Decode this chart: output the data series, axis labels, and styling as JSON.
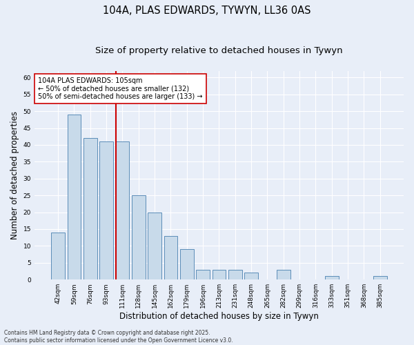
{
  "title1": "104A, PLAS EDWARDS, TYWYN, LL36 0AS",
  "title2": "Size of property relative to detached houses in Tywyn",
  "xlabel": "Distribution of detached houses by size in Tywyn",
  "ylabel": "Number of detached properties",
  "categories": [
    "42sqm",
    "59sqm",
    "76sqm",
    "93sqm",
    "111sqm",
    "128sqm",
    "145sqm",
    "162sqm",
    "179sqm",
    "196sqm",
    "213sqm",
    "231sqm",
    "248sqm",
    "265sqm",
    "282sqm",
    "299sqm",
    "316sqm",
    "333sqm",
    "351sqm",
    "368sqm",
    "385sqm"
  ],
  "values": [
    14,
    49,
    42,
    41,
    41,
    25,
    20,
    13,
    9,
    3,
    3,
    3,
    2,
    0,
    3,
    0,
    0,
    1,
    0,
    0,
    1
  ],
  "bar_color": "#c8daea",
  "bar_edge_color": "#5b8db8",
  "vline_color": "#cc0000",
  "annotation_text": "104A PLAS EDWARDS: 105sqm\n← 50% of detached houses are smaller (132)\n50% of semi-detached houses are larger (133) →",
  "annotation_box_color": "#ffffff",
  "annotation_box_edge": "#cc0000",
  "ylim": [
    0,
    62
  ],
  "yticks": [
    0,
    5,
    10,
    15,
    20,
    25,
    30,
    35,
    40,
    45,
    50,
    55,
    60
  ],
  "bg_color": "#e8eef8",
  "grid_color": "#ffffff",
  "footer": "Contains HM Land Registry data © Crown copyright and database right 2025.\nContains public sector information licensed under the Open Government Licence v3.0.",
  "title1_fontsize": 10.5,
  "title2_fontsize": 9.5,
  "tick_fontsize": 6.5,
  "label_fontsize": 8.5,
  "annotation_fontsize": 7,
  "footer_fontsize": 5.5
}
